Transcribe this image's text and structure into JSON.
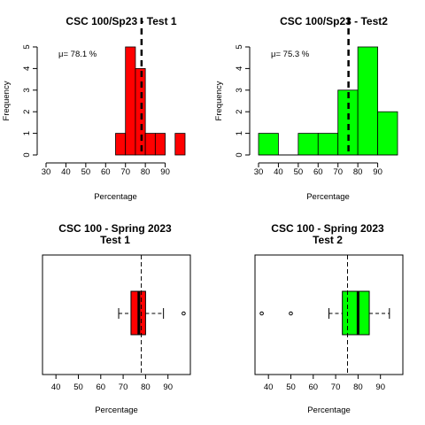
{
  "chart_data": [
    {
      "type": "bar",
      "title": "CSC 100/Sp23 - Test 1",
      "xlabel": "Percentage",
      "ylabel": "Frequency",
      "bins": [
        [
          65,
          70
        ],
        [
          70,
          75
        ],
        [
          75,
          80
        ],
        [
          80,
          85
        ],
        [
          85,
          90
        ],
        [
          95,
          100
        ]
      ],
      "values": [
        1,
        5,
        4,
        1,
        1,
        1
      ],
      "xlim": [
        30,
        100
      ],
      "xticks": [
        "30",
        "40",
        "50",
        "60",
        "70",
        "80",
        "90"
      ],
      "ylim": [
        0,
        5
      ],
      "yticks": [
        "0",
        "1",
        "2",
        "3",
        "4",
        "5"
      ],
      "mean": 78.1,
      "mean_label": "μ= 78.1 %",
      "color": "#ff0000"
    },
    {
      "type": "bar",
      "title": "CSC 100/Sp23 - Test2",
      "xlabel": "Percentage",
      "ylabel": "Frequency",
      "bins": [
        [
          30,
          40
        ],
        [
          40,
          50
        ],
        [
          50,
          60
        ],
        [
          60,
          70
        ],
        [
          70,
          80
        ],
        [
          80,
          90
        ],
        [
          90,
          100
        ]
      ],
      "values": [
        1,
        0,
        1,
        1,
        3,
        5,
        2
      ],
      "xlim": [
        30,
        100
      ],
      "xticks": [
        "30",
        "40",
        "50",
        "60",
        "70",
        "80",
        "90"
      ],
      "ylim": [
        0,
        5
      ],
      "yticks": [
        "0",
        "1",
        "2",
        "3",
        "4",
        "5"
      ],
      "mean": 75.3,
      "mean_label": "μ= 75.3 %",
      "color": "#00ff00"
    },
    {
      "type": "box",
      "title": "CSC 100 - Spring 2023\nTest 1",
      "xlabel": "Percentage",
      "xlim": [
        34,
        100
      ],
      "xticks": [
        "40",
        "50",
        "60",
        "70",
        "80",
        "90"
      ],
      "whisker_low": 68,
      "q1": 73.5,
      "median": 77,
      "q3": 80,
      "whisker_high": 88,
      "outliers": [
        97
      ],
      "mean": 78.1,
      "color": "#ff0000"
    },
    {
      "type": "box",
      "title": "CSC 100 - Spring 2023\nTest 2",
      "xlabel": "Percentage",
      "xlim": [
        34,
        100
      ],
      "xticks": [
        "40",
        "50",
        "60",
        "70",
        "80",
        "90"
      ],
      "whisker_low": 67,
      "q1": 73,
      "median": 80,
      "q3": 85,
      "whisker_high": 94,
      "outliers": [
        37,
        50
      ],
      "mean": 75.3,
      "color": "#00ff00"
    }
  ]
}
